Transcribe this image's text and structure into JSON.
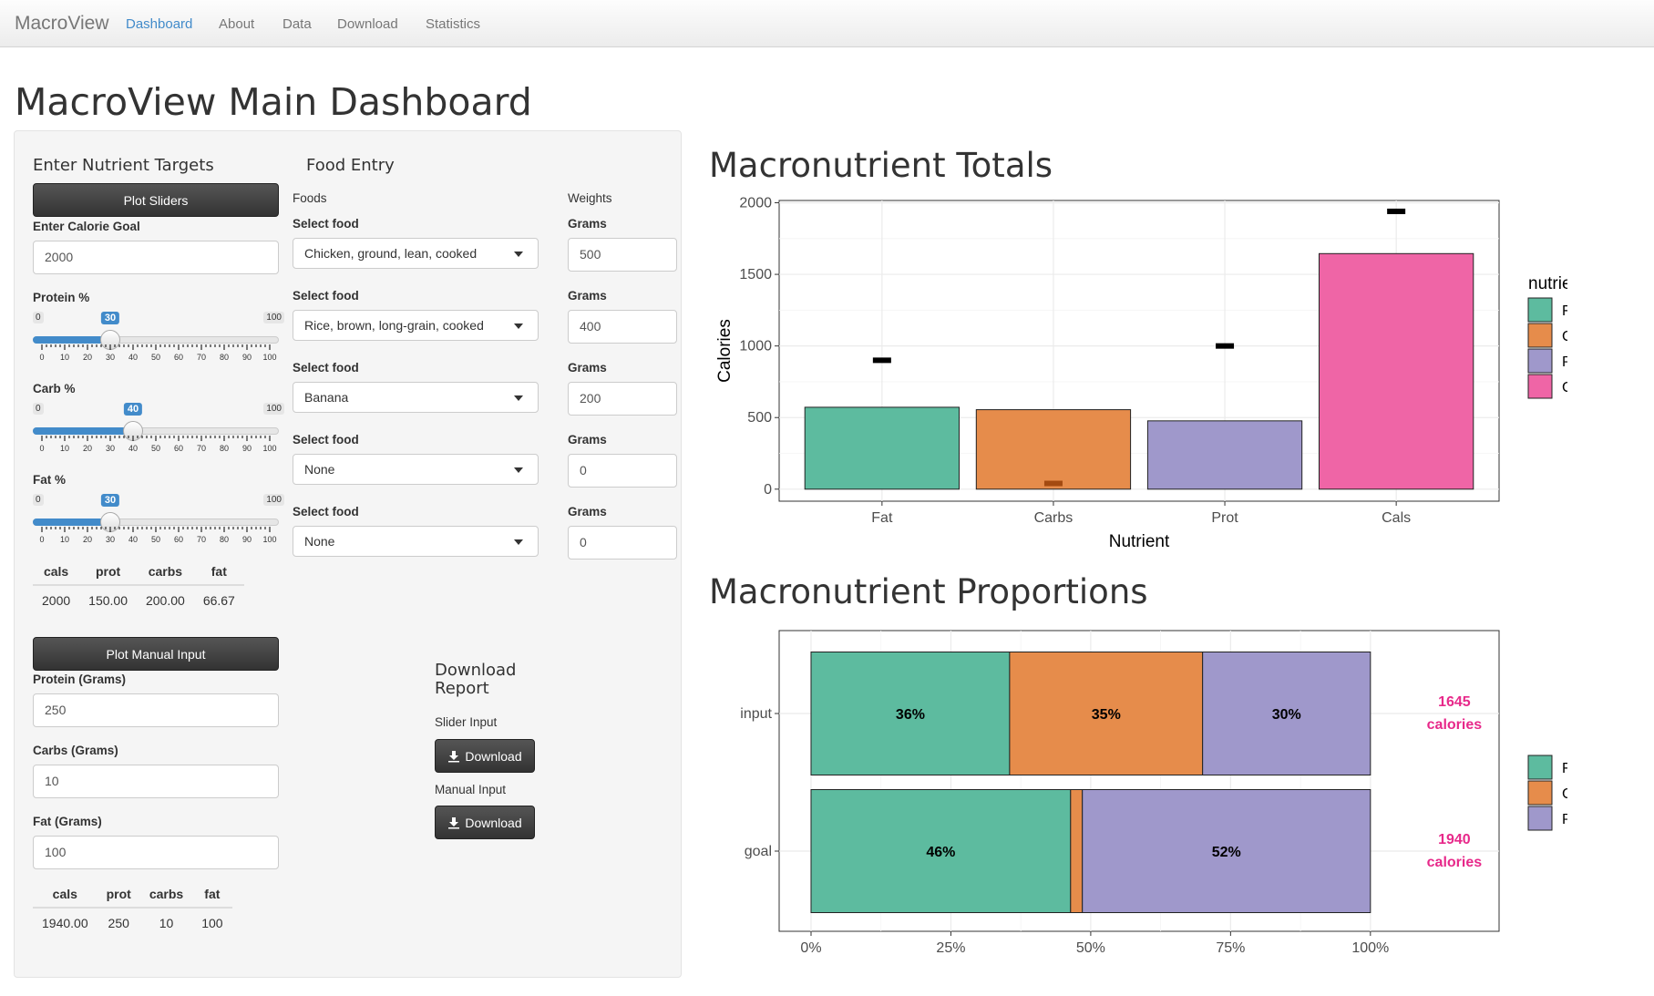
{
  "nav": {
    "brand": "MacroView",
    "links": [
      "Dashboard",
      "About",
      "Data",
      "Download",
      "Statistics"
    ],
    "active": "Dashboard"
  },
  "page_title": "MacroView Main Dashboard",
  "targets": {
    "heading": "Enter Nutrient Targets",
    "plot_sliders_label": "Plot Sliders",
    "calorie_goal_label": "Enter Calorie Goal",
    "calorie_goal_value": "2000",
    "sliders": [
      {
        "label": "Protein %",
        "value": 30,
        "min": 0,
        "max": 100
      },
      {
        "label": "Carb %",
        "value": 40,
        "min": 0,
        "max": 100
      },
      {
        "label": "Fat %",
        "value": 30,
        "min": 0,
        "max": 100
      }
    ],
    "tick_labels": [
      "0",
      "10",
      "20",
      "30",
      "40",
      "50",
      "60",
      "70",
      "80",
      "90",
      "100"
    ],
    "slider_table": {
      "headers": [
        "cals",
        "prot",
        "carbs",
        "fat"
      ],
      "row": [
        "2000",
        "150.00",
        "200.00",
        "66.67"
      ]
    },
    "plot_manual_label": "Plot Manual Input",
    "protein_label": "Protein (Grams)",
    "protein_value": "250",
    "carbs_label": "Carbs (Grams)",
    "carbs_value": "10",
    "fat_label": "Fat (Grams)",
    "fat_value": "100",
    "manual_table": {
      "headers": [
        "cals",
        "prot",
        "carbs",
        "fat"
      ],
      "row": [
        "1940.00",
        "250",
        "10",
        "100"
      ]
    }
  },
  "food_entry": {
    "heading": "Food Entry",
    "foods_label": "Foods",
    "weights_label": "Weights",
    "select_label": "Select food",
    "grams_label": "Grams",
    "rows": [
      {
        "food": "Chicken, ground, lean, cooked",
        "grams": "500"
      },
      {
        "food": "Rice, brown, long-grain, cooked",
        "grams": "400"
      },
      {
        "food": "Banana",
        "grams": "200"
      },
      {
        "food": "None",
        "grams": "0"
      },
      {
        "food": "None",
        "grams": "0"
      }
    ]
  },
  "download": {
    "heading": "Download Report",
    "slider_label": "Slider Input",
    "manual_label": "Manual Input",
    "button_label": "Download"
  },
  "colors": {
    "Fat": "#5dbb9f",
    "Carbs": "#e68c4b",
    "Prot": "#9f98cb",
    "Cals": "#ef65a6",
    "calorie_text": "#e7298a"
  },
  "chart_data": [
    {
      "type": "bar",
      "title": "Macronutrient Totals",
      "xlabel": "Nutrient",
      "ylabel": "Calories",
      "categories": [
        "Fat",
        "Carbs",
        "Prot",
        "Cals"
      ],
      "values": [
        572,
        555,
        477,
        1645
      ],
      "goal_markers": [
        900,
        40,
        1000,
        1940
      ],
      "ylim": [
        0,
        2000
      ],
      "yticks": [
        0,
        500,
        1000,
        1500,
        2000
      ],
      "legend_title": "nutrients",
      "legend": [
        "Fat",
        "Carbs",
        "Prot",
        "Cals"
      ],
      "legend_placement": "right",
      "grid": true
    },
    {
      "type": "bar",
      "orientation": "horizontal",
      "stacked": true,
      "title": "Macronutrient Proportions",
      "categories": [
        "input",
        "goal"
      ],
      "series": [
        {
          "name": "Fat",
          "values": [
            35.5,
            46.4
          ]
        },
        {
          "name": "Carbs",
          "values": [
            34.5,
            2.1
          ]
        },
        {
          "name": "Prot",
          "values": [
            30.0,
            51.5
          ]
        }
      ],
      "segment_labels": [
        [
          "36%",
          "35%",
          "30%"
        ],
        [
          "46%",
          "",
          "52%"
        ]
      ],
      "calorie_labels": [
        [
          "1645",
          "calories"
        ],
        [
          "1940",
          "calories"
        ]
      ],
      "xticks": [
        "0%",
        "25%",
        "50%",
        "75%",
        "100%"
      ],
      "legend": [
        "Fat",
        "Carbs",
        "Prot"
      ],
      "legend_placement": "right",
      "grid": true
    }
  ]
}
